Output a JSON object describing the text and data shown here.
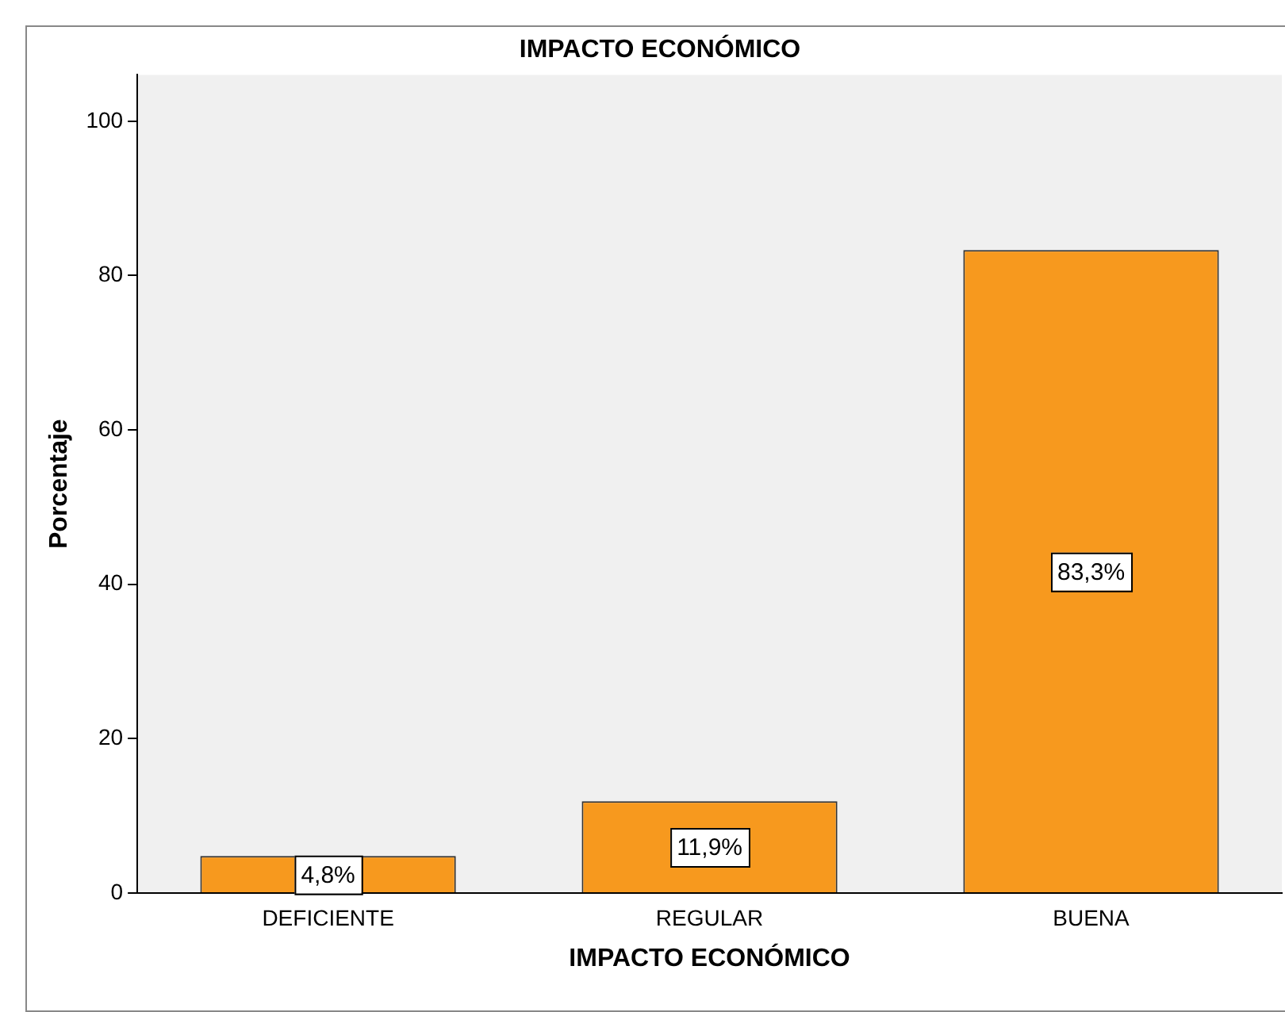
{
  "chart_data": {
    "type": "bar",
    "title": "IMPACTO ECONÓMICO",
    "xlabel": "IMPACTO ECONÓMICO",
    "ylabel": "Porcentaje",
    "categories": [
      "DEFICIENTE",
      "REGULAR",
      "BUENA"
    ],
    "values": [
      4.8,
      11.9,
      83.3
    ],
    "value_labels": [
      "4,8%",
      "11,9%",
      "83,3%"
    ],
    "color": "#f7991e",
    "ylim": [
      0,
      106
    ],
    "yticks": [
      0,
      20,
      40,
      60,
      80,
      100
    ],
    "grid": false,
    "legend": false
  }
}
